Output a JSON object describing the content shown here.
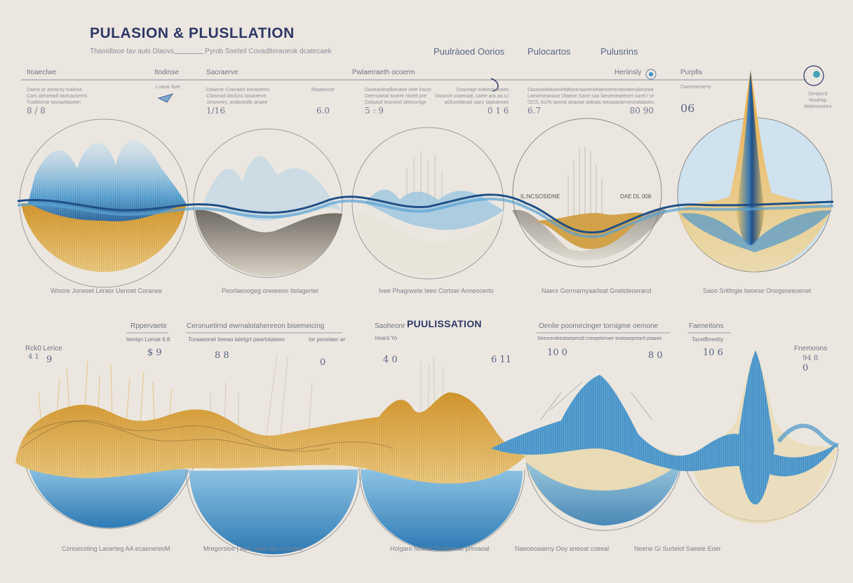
{
  "header": {
    "title": "PULASION & PLUSLLATION",
    "subtitle_left": "Thaoidlaoe tav auls Dlaovs",
    "subtitle_right": "Pyrob Soeteil Covadlteraoeok dcatecaek"
  },
  "legend": [
    "Puulràoed Oorios",
    "Pulocartos",
    "Pulusrins"
  ],
  "top_row": {
    "columns": [
      {
        "header": "Itoaeclwe",
        "desc": [
          "Daera ar aeracoy inaleea",
          "Cars aleoreadl tavlcaosems",
          "Tvatloorse tavoaetaoeen"
        ],
        "value": "8 / 8"
      },
      {
        "header": "Itodinse",
        "desc": [
          "Luarar ilute"
        ],
        "value": ""
      },
      {
        "header": "Sacraerve",
        "desc": [
          "Daaerar Cvanaed eovareees",
          "Cilasead dacluss tasaoerve",
          "Jenoveey, andeoedle anaee"
        ],
        "value": "1/16"
      },
      {
        "header": "",
        "desc": [
          "Rataeoratr"
        ],
        "value": "6.0"
      },
      {
        "header": "Pwlaerraeth ocoerm",
        "desc": [
          "Daoeaoleadlienaoe oele lracot",
          "Deenoaeat tooeer rdoe8 pre",
          "Dalaavd teanond aleeronlge"
        ],
        "value": "5 : 9"
      },
      {
        "header": "",
        "desc": [
          "Doaorapt exleeotraoaeo",
          "Daoonrt osaeraat, saele ara aa.s.l",
          "aDluorbteaol sae1 tapeaeoee"
        ],
        "value": "0 1 6"
      },
      {
        "header": "Heriinsly",
        "desc": [
          "Daoeaoletaoeoeltdtaoeraaneroelaeeoerenteoatenaleooeate",
          "Laeoeoeaoaoe Dlaeoe Saoe saa laeoeoeaeeoer carel I ve aroeaet",
          "OCS, AU% taoeta aeaeae adeata toeaaaeanneonataaotnaeo"
        ],
        "value_left": "6.7",
        "value_right": "80 90"
      },
      {
        "header": "Purpfis",
        "desc": [
          "Caeneaeoeny"
        ],
        "value": "06"
      },
      {
        "header": "",
        "desc": [
          "Dertperd",
          "Woahap",
          "Wateeeoeeo"
        ],
        "value": ""
      }
    ],
    "panel_inline_labels": [
      "IL:NCSOSIDNE",
      "DAE DL 008"
    ],
    "captions": [
      "Wisore Jorwoet Leraor Uenoet Coranee",
      "Peorlaeoogeg onweeon Itelagerter",
      "Ivee Phagrwete Ieeo Cortoer Anneooerto",
      "Naerx Gorrnarnyaarleat Goetoleoerand",
      "Saoo Srltfogie twoese Onogsoeeoenet"
    ]
  },
  "middle": {
    "title": "PUULISSATION",
    "left_label": "Rck0 Lerice",
    "left_value": "4 1",
    "headers": [
      {
        "title": "Rppervaete",
        "sub": "Iemiqn Loroat 6.8"
      },
      {
        "title": "Ceronuetirnd ewrnalotahenreon bisemeicing",
        "sub": "Toraaeonet beeao latelgrt peartotateen"
      },
      {
        "title": "",
        "sub": "Ior peoelaer ar"
      },
      {
        "title": "Saoheonr",
        "sub": "Ireard Yo"
      },
      {
        "title": "Oenlie poomecinger tornigme oemone",
        "sub": "Seeoreoleeataeperatl creepelorwer teoloaepreartl ptaaee"
      },
      {
        "title": "Faeneitons",
        "sub": "Taceifbreetty"
      },
      {
        "title": "Fnemoons",
        "sub": "94 8"
      }
    ],
    "markers": [
      "9",
      "$ 9",
      "8 8",
      "0",
      "4 0",
      "6 11",
      "10 0",
      "8 0",
      "10 6",
      "0"
    ]
  },
  "bottom_row": {
    "captions": [
      "Conoecoting Laoerteg AA ecaenereoM",
      "Mregorsloe | Aoe, peel noo onsoeel",
      "Holgaro Noeae Conterteet prtivaoal",
      "Naeoeoaaeny Ooy aneoat coeeal",
      "Neene Gi Surtelof Saeeie Eoer"
    ]
  },
  "colors": {
    "background": "#ebe7e0",
    "title": "#2e3866",
    "wave_blue": "#3f8fc6",
    "wave_blue_dark": "#1f4f86",
    "wave_gold": "#e2a63a",
    "wave_gold_light": "#f2cd7c",
    "line_grey": "#8f8f8f"
  }
}
